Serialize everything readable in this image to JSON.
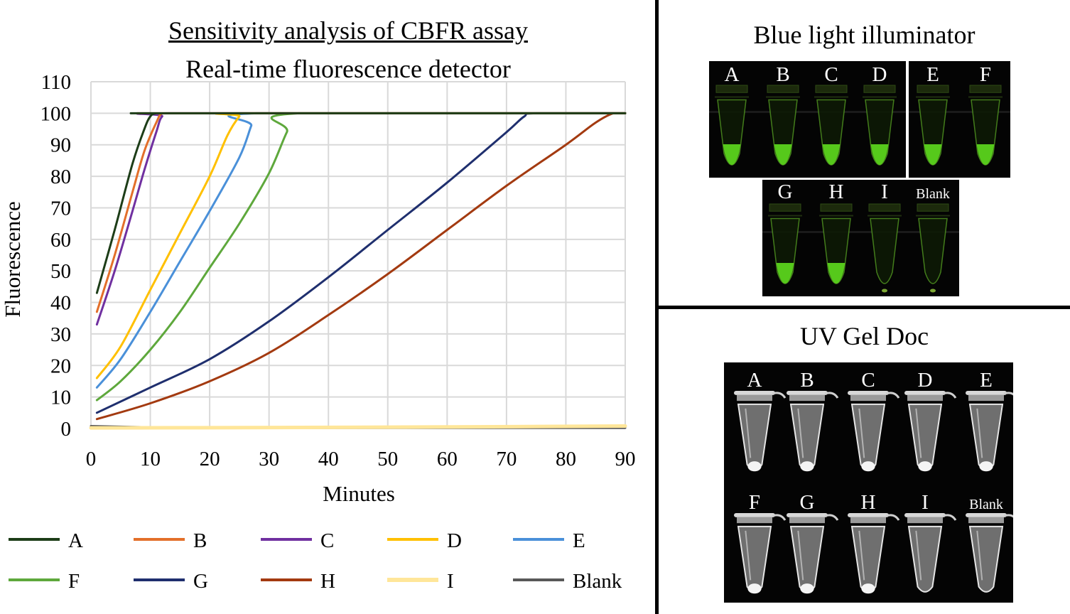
{
  "chart_data": {
    "type": "line",
    "title": "Sensitivity analysis of CBFR assay",
    "subtitle": "Real-time fluorescence detector",
    "xlabel": "Minutes",
    "ylabel": "Fluorescence",
    "xlim": [
      0,
      90
    ],
    "ylim": [
      0,
      110
    ],
    "xticks": [
      0,
      10,
      20,
      30,
      40,
      50,
      60,
      70,
      80,
      90
    ],
    "yticks": [
      0,
      10,
      20,
      30,
      40,
      50,
      60,
      70,
      80,
      90,
      100,
      110
    ],
    "grid": true,
    "legend_position": "bottom",
    "series": [
      {
        "name": "A",
        "color": "#1d3d18",
        "x": [
          1,
          4,
          7,
          9,
          10,
          11,
          13,
          90
        ],
        "y": [
          43,
          63,
          84,
          95,
          99,
          100,
          100,
          100
        ]
      },
      {
        "name": "B",
        "color": "#e36f2a",
        "x": [
          1,
          4,
          7,
          9,
          11,
          12,
          14,
          90
        ],
        "y": [
          37,
          55,
          75,
          88,
          97,
          100,
          100,
          100
        ]
      },
      {
        "name": "C",
        "color": "#7030a0",
        "x": [
          1,
          4,
          7,
          9,
          11,
          12,
          14,
          90
        ],
        "y": [
          33,
          50,
          69,
          82,
          94,
          99,
          100,
          100
        ]
      },
      {
        "name": "D",
        "color": "#ffc000",
        "x": [
          1,
          5,
          10,
          15,
          20,
          23,
          25,
          26,
          90
        ],
        "y": [
          16,
          26,
          44,
          62,
          80,
          93,
          99,
          100,
          100
        ]
      },
      {
        "name": "E",
        "color": "#4a90d9",
        "x": [
          1,
          5,
          10,
          15,
          20,
          25,
          27,
          28,
          90
        ],
        "y": [
          13,
          22,
          37,
          53,
          69,
          86,
          96,
          100,
          100
        ]
      },
      {
        "name": "F",
        "color": "#5ea83c",
        "x": [
          1,
          5,
          10,
          15,
          20,
          25,
          30,
          33,
          35,
          90
        ],
        "y": [
          9,
          15,
          25,
          37,
          51,
          65,
          81,
          94,
          100,
          100
        ]
      },
      {
        "name": "G",
        "color": "#1f2f6e",
        "x": [
          1,
          10,
          20,
          30,
          40,
          50,
          60,
          70,
          73,
          75,
          90
        ],
        "y": [
          5,
          13,
          22,
          34,
          48,
          63,
          78,
          94,
          99,
          100,
          100
        ]
      },
      {
        "name": "H",
        "color": "#a33a10",
        "x": [
          1,
          10,
          20,
          30,
          40,
          50,
          60,
          70,
          80,
          85,
          88,
          90
        ],
        "y": [
          3,
          8,
          15,
          24,
          36,
          49,
          63,
          77,
          90,
          97,
          100,
          100
        ]
      },
      {
        "name": "I",
        "color": "#ffe699",
        "x": [
          0,
          30,
          60,
          90
        ],
        "y": [
          0.2,
          0.3,
          0.5,
          0.8
        ]
      },
      {
        "name": "Blank",
        "color": "#595959",
        "x": [
          0,
          10,
          20,
          40,
          60,
          90
        ],
        "y": [
          0.8,
          0.4,
          0.3,
          0.2,
          0.2,
          0.2
        ]
      }
    ]
  },
  "blue_panel": {
    "title": "Blue light illuminator",
    "row1_left": [
      "A",
      "B",
      "C",
      "D"
    ],
    "row1_right": [
      "E",
      "F"
    ],
    "row2": [
      "G",
      "H",
      "I",
      "Blank"
    ]
  },
  "uv_panel": {
    "title": "UV Gel Doc",
    "row1": [
      "A",
      "B",
      "C",
      "D",
      "E"
    ],
    "row2": [
      "F",
      "G",
      "H",
      "I",
      "Blank"
    ]
  }
}
